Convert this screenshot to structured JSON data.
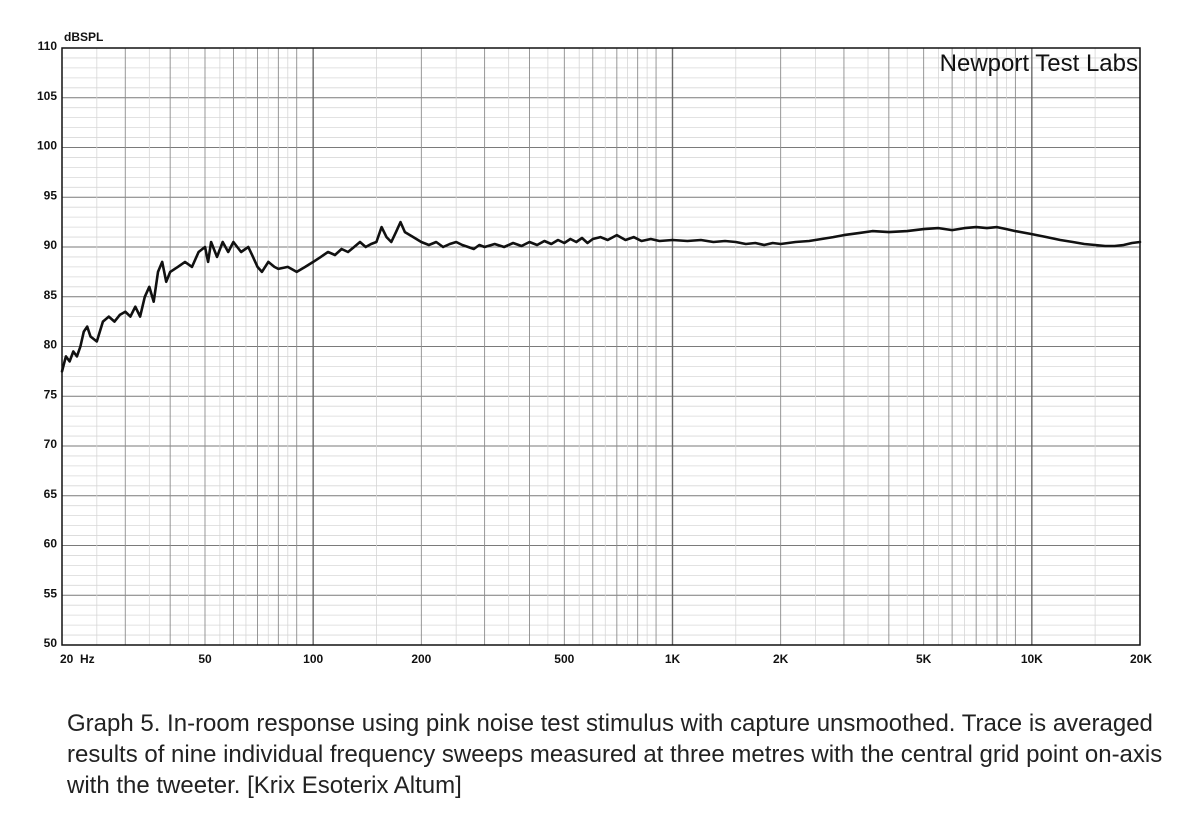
{
  "chart_data": {
    "type": "line",
    "ylabel": "dBSPL",
    "annotation": "Newport Test Labs",
    "x_scale": "log",
    "xlim": [
      20,
      20000
    ],
    "ylim": [
      50,
      110
    ],
    "grid": true,
    "y_ticks": [
      50,
      55,
      60,
      65,
      70,
      75,
      80,
      85,
      90,
      95,
      100,
      105,
      110
    ],
    "x_ticks": [
      {
        "value": 20,
        "label": "20  Hz"
      },
      {
        "value": 50,
        "label": "50"
      },
      {
        "value": 100,
        "label": "100"
      },
      {
        "value": 200,
        "label": "200"
      },
      {
        "value": 500,
        "label": "500"
      },
      {
        "value": 1000,
        "label": "1K"
      },
      {
        "value": 2000,
        "label": "2K"
      },
      {
        "value": 5000,
        "label": "5K"
      },
      {
        "value": 10000,
        "label": "10K"
      },
      {
        "value": 20000,
        "label": "20K"
      }
    ],
    "series": [
      {
        "color": "#111111",
        "points": [
          [
            20,
            77.5
          ],
          [
            20.5,
            79
          ],
          [
            21,
            78.5
          ],
          [
            21.5,
            79.5
          ],
          [
            22,
            79
          ],
          [
            22.5,
            80
          ],
          [
            23,
            81.5
          ],
          [
            23.5,
            82
          ],
          [
            24,
            81
          ],
          [
            25,
            80.5
          ],
          [
            26,
            82.5
          ],
          [
            27,
            83
          ],
          [
            28,
            82.5
          ],
          [
            29,
            83.2
          ],
          [
            30,
            83.5
          ],
          [
            31,
            83
          ],
          [
            32,
            84
          ],
          [
            33,
            83
          ],
          [
            34,
            85
          ],
          [
            35,
            86
          ],
          [
            36,
            84.5
          ],
          [
            37,
            87.5
          ],
          [
            38,
            88.5
          ],
          [
            39,
            86.5
          ],
          [
            40,
            87.5
          ],
          [
            42,
            88
          ],
          [
            44,
            88.5
          ],
          [
            46,
            88
          ],
          [
            48,
            89.5
          ],
          [
            50,
            90
          ],
          [
            51,
            88.5
          ],
          [
            52,
            90.5
          ],
          [
            54,
            89
          ],
          [
            56,
            90.5
          ],
          [
            58,
            89.5
          ],
          [
            60,
            90.5
          ],
          [
            63,
            89.5
          ],
          [
            66,
            90
          ],
          [
            68,
            89
          ],
          [
            70,
            88
          ],
          [
            72,
            87.5
          ],
          [
            75,
            88.5
          ],
          [
            78,
            88
          ],
          [
            80,
            87.8
          ],
          [
            85,
            88
          ],
          [
            90,
            87.5
          ],
          [
            95,
            88
          ],
          [
            100,
            88.5
          ],
          [
            105,
            89
          ],
          [
            110,
            89.5
          ],
          [
            115,
            89.2
          ],
          [
            120,
            89.8
          ],
          [
            125,
            89.5
          ],
          [
            130,
            90
          ],
          [
            135,
            90.5
          ],
          [
            140,
            90
          ],
          [
            145,
            90.3
          ],
          [
            150,
            90.5
          ],
          [
            155,
            92
          ],
          [
            160,
            91
          ],
          [
            165,
            90.5
          ],
          [
            170,
            91.5
          ],
          [
            175,
            92.5
          ],
          [
            180,
            91.5
          ],
          [
            190,
            91
          ],
          [
            200,
            90.5
          ],
          [
            210,
            90.2
          ],
          [
            220,
            90.5
          ],
          [
            230,
            90
          ],
          [
            240,
            90.3
          ],
          [
            250,
            90.5
          ],
          [
            260,
            90.2
          ],
          [
            270,
            90
          ],
          [
            280,
            89.8
          ],
          [
            290,
            90.2
          ],
          [
            300,
            90
          ],
          [
            320,
            90.3
          ],
          [
            340,
            90
          ],
          [
            360,
            90.4
          ],
          [
            380,
            90.1
          ],
          [
            400,
            90.5
          ],
          [
            420,
            90.2
          ],
          [
            440,
            90.6
          ],
          [
            460,
            90.3
          ],
          [
            480,
            90.7
          ],
          [
            500,
            90.4
          ],
          [
            520,
            90.8
          ],
          [
            540,
            90.5
          ],
          [
            560,
            90.9
          ],
          [
            580,
            90.4
          ],
          [
            600,
            90.8
          ],
          [
            630,
            91
          ],
          [
            660,
            90.7
          ],
          [
            700,
            91.2
          ],
          [
            740,
            90.7
          ],
          [
            780,
            91
          ],
          [
            820,
            90.6
          ],
          [
            870,
            90.8
          ],
          [
            920,
            90.6
          ],
          [
            1000,
            90.7
          ],
          [
            1100,
            90.6
          ],
          [
            1200,
            90.7
          ],
          [
            1300,
            90.5
          ],
          [
            1400,
            90.6
          ],
          [
            1500,
            90.5
          ],
          [
            1600,
            90.3
          ],
          [
            1700,
            90.4
          ],
          [
            1800,
            90.2
          ],
          [
            1900,
            90.4
          ],
          [
            2000,
            90.3
          ],
          [
            2200,
            90.5
          ],
          [
            2400,
            90.6
          ],
          [
            2600,
            90.8
          ],
          [
            2800,
            91
          ],
          [
            3000,
            91.2
          ],
          [
            3300,
            91.4
          ],
          [
            3600,
            91.6
          ],
          [
            4000,
            91.5
          ],
          [
            4500,
            91.6
          ],
          [
            5000,
            91.8
          ],
          [
            5500,
            91.9
          ],
          [
            6000,
            91.7
          ],
          [
            6500,
            91.9
          ],
          [
            7000,
            92
          ],
          [
            7500,
            91.9
          ],
          [
            8000,
            92
          ],
          [
            8500,
            91.8
          ],
          [
            9000,
            91.6
          ],
          [
            10000,
            91.3
          ],
          [
            11000,
            91
          ],
          [
            12000,
            90.7
          ],
          [
            13000,
            90.5
          ],
          [
            14000,
            90.3
          ],
          [
            15000,
            90.2
          ],
          [
            16000,
            90.1
          ],
          [
            17000,
            90.1
          ],
          [
            18000,
            90.2
          ],
          [
            19000,
            90.4
          ],
          [
            20000,
            90.5
          ]
        ]
      }
    ]
  },
  "caption": "Graph 5. In-room response using pink noise test stimulus with capture unsmoothed. Trace is averaged results of nine individual frequency sweeps measured at three metres with the central grid point on-axis with the tweeter. [Krix Esoterix Altum]"
}
